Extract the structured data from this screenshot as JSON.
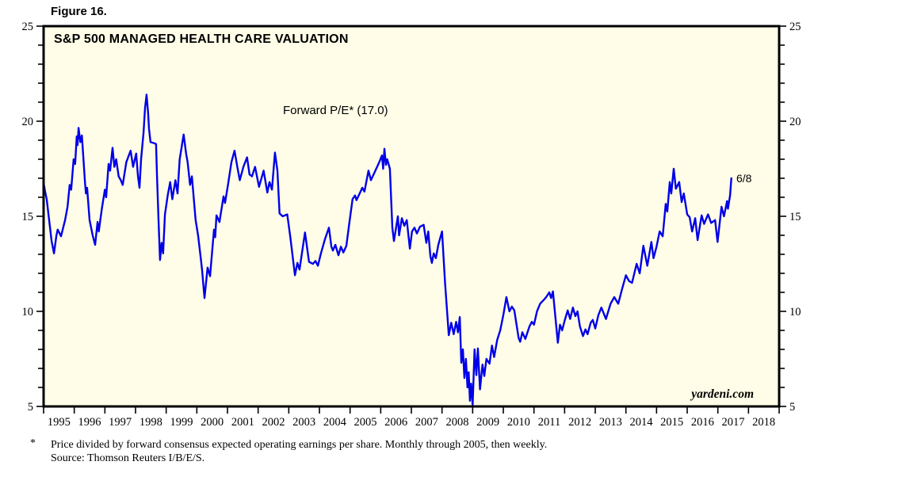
{
  "figure_label": "Figure 16.",
  "footnote": {
    "asterisk": "*",
    "text": "Price divided by forward consensus expected operating earnings per share. Monthly through 2005, then weekly.",
    "source": "Source: Thomson Reuters I/B/E/S."
  },
  "chart_data": {
    "type": "line",
    "title": "S&P 500 MANAGED HEALTH CARE VALUATION",
    "annotation": "Forward P/E* (17.0)",
    "endpoint_label": "6/8",
    "watermark": "yardeni.com",
    "xlabel": "",
    "ylabel": "",
    "grid": false,
    "legend_position": "none",
    "x_range": [
      1995,
      2019
    ],
    "y_range": [
      5,
      25
    ],
    "y_major_ticks": [
      5,
      10,
      15,
      20,
      25
    ],
    "y_minor_step": 1,
    "x_tick_labels": [
      "1995",
      "1996",
      "1997",
      "1998",
      "1999",
      "2000",
      "2001",
      "2002",
      "2003",
      "2004",
      "2005",
      "2006",
      "2007",
      "2008",
      "2009",
      "2010",
      "2011",
      "2012",
      "2013",
      "2014",
      "2015",
      "2016",
      "2017",
      "2018"
    ],
    "colors": {
      "line": "#0000e8",
      "plot_bg": "#fffde7",
      "axis": "#000000"
    },
    "series": [
      {
        "name": "Forward P/E",
        "points": [
          [
            1995.0,
            16.75
          ],
          [
            1995.05,
            16.3
          ],
          [
            1995.1,
            15.9
          ],
          [
            1995.18,
            14.8
          ],
          [
            1995.26,
            13.7
          ],
          [
            1995.34,
            13.05
          ],
          [
            1995.42,
            14.0
          ],
          [
            1995.46,
            14.3
          ],
          [
            1995.57,
            13.95
          ],
          [
            1995.7,
            14.8
          ],
          [
            1995.78,
            15.5
          ],
          [
            1995.85,
            16.65
          ],
          [
            1995.9,
            16.4
          ],
          [
            1995.98,
            18.0
          ],
          [
            1996.03,
            17.75
          ],
          [
            1996.08,
            19.2
          ],
          [
            1996.11,
            18.75
          ],
          [
            1996.14,
            19.65
          ],
          [
            1996.2,
            18.9
          ],
          [
            1996.25,
            19.25
          ],
          [
            1996.3,
            18.0
          ],
          [
            1996.35,
            16.8
          ],
          [
            1996.38,
            16.2
          ],
          [
            1996.42,
            16.5
          ],
          [
            1996.5,
            14.8
          ],
          [
            1996.6,
            14.0
          ],
          [
            1996.68,
            13.5
          ],
          [
            1996.76,
            14.7
          ],
          [
            1996.8,
            14.2
          ],
          [
            1996.9,
            15.4
          ],
          [
            1997.0,
            16.4
          ],
          [
            1997.04,
            16.0
          ],
          [
            1997.12,
            17.75
          ],
          [
            1997.17,
            17.4
          ],
          [
            1997.25,
            18.6
          ],
          [
            1997.31,
            17.6
          ],
          [
            1997.37,
            18.0
          ],
          [
            1997.45,
            17.1
          ],
          [
            1997.52,
            16.9
          ],
          [
            1997.58,
            16.65
          ],
          [
            1997.7,
            17.85
          ],
          [
            1997.84,
            18.45
          ],
          [
            1997.92,
            17.6
          ],
          [
            1998.02,
            18.3
          ],
          [
            1998.08,
            17.1
          ],
          [
            1998.13,
            16.5
          ],
          [
            1998.18,
            18.0
          ],
          [
            1998.26,
            19.4
          ],
          [
            1998.31,
            20.7
          ],
          [
            1998.36,
            21.4
          ],
          [
            1998.41,
            20.4
          ],
          [
            1998.44,
            19.6
          ],
          [
            1998.49,
            18.9
          ],
          [
            1998.6,
            18.85
          ],
          [
            1998.67,
            18.8
          ],
          [
            1998.7,
            17.1
          ],
          [
            1998.75,
            14.8
          ],
          [
            1998.8,
            12.7
          ],
          [
            1998.85,
            13.6
          ],
          [
            1998.9,
            13.05
          ],
          [
            1998.96,
            15.1
          ],
          [
            1999.05,
            16.1
          ],
          [
            1999.13,
            16.8
          ],
          [
            1999.2,
            15.9
          ],
          [
            1999.3,
            16.9
          ],
          [
            1999.37,
            16.2
          ],
          [
            1999.44,
            18.0
          ],
          [
            1999.57,
            19.3
          ],
          [
            1999.65,
            18.3
          ],
          [
            1999.7,
            17.85
          ],
          [
            1999.78,
            16.65
          ],
          [
            1999.84,
            17.1
          ],
          [
            1999.96,
            14.8
          ],
          [
            2000.04,
            14.0
          ],
          [
            2000.12,
            12.9
          ],
          [
            2000.17,
            12.2
          ],
          [
            2000.25,
            10.7
          ],
          [
            2000.35,
            12.3
          ],
          [
            2000.43,
            11.85
          ],
          [
            2000.56,
            14.3
          ],
          [
            2000.6,
            13.9
          ],
          [
            2000.64,
            15.05
          ],
          [
            2000.74,
            14.7
          ],
          [
            2000.87,
            16.05
          ],
          [
            2000.92,
            15.7
          ],
          [
            2001.02,
            16.7
          ],
          [
            2001.13,
            17.85
          ],
          [
            2001.23,
            18.45
          ],
          [
            2001.32,
            17.6
          ],
          [
            2001.4,
            16.9
          ],
          [
            2001.52,
            17.6
          ],
          [
            2001.64,
            18.1
          ],
          [
            2001.72,
            17.2
          ],
          [
            2001.8,
            17.1
          ],
          [
            2001.9,
            17.6
          ],
          [
            2002.03,
            16.55
          ],
          [
            2002.18,
            17.4
          ],
          [
            2002.3,
            16.25
          ],
          [
            2002.37,
            16.8
          ],
          [
            2002.45,
            16.4
          ],
          [
            2002.55,
            18.35
          ],
          [
            2002.63,
            17.4
          ],
          [
            2002.7,
            15.15
          ],
          [
            2002.8,
            15.0
          ],
          [
            2002.95,
            15.1
          ],
          [
            2003.05,
            13.9
          ],
          [
            2003.2,
            11.9
          ],
          [
            2003.28,
            12.55
          ],
          [
            2003.35,
            12.2
          ],
          [
            2003.53,
            14.15
          ],
          [
            2003.66,
            12.6
          ],
          [
            2003.79,
            12.5
          ],
          [
            2003.87,
            12.65
          ],
          [
            2003.95,
            12.4
          ],
          [
            2004.05,
            13.05
          ],
          [
            2004.18,
            13.8
          ],
          [
            2004.31,
            14.4
          ],
          [
            2004.39,
            13.4
          ],
          [
            2004.44,
            13.2
          ],
          [
            2004.52,
            13.5
          ],
          [
            2004.62,
            12.95
          ],
          [
            2004.7,
            13.4
          ],
          [
            2004.78,
            13.1
          ],
          [
            2004.88,
            13.45
          ],
          [
            2004.98,
            14.7
          ],
          [
            2005.08,
            15.9
          ],
          [
            2005.16,
            16.1
          ],
          [
            2005.21,
            15.85
          ],
          [
            2005.4,
            16.5
          ],
          [
            2005.47,
            16.3
          ],
          [
            2005.6,
            17.4
          ],
          [
            2005.68,
            16.9
          ],
          [
            2005.81,
            17.35
          ],
          [
            2005.94,
            17.8
          ],
          [
            2006.04,
            18.2
          ],
          [
            2006.08,
            17.5
          ],
          [
            2006.12,
            18.55
          ],
          [
            2006.17,
            17.7
          ],
          [
            2006.21,
            18.0
          ],
          [
            2006.3,
            17.5
          ],
          [
            2006.38,
            14.4
          ],
          [
            2006.43,
            13.7
          ],
          [
            2006.56,
            15.0
          ],
          [
            2006.6,
            14.0
          ],
          [
            2006.69,
            14.9
          ],
          [
            2006.77,
            14.5
          ],
          [
            2006.85,
            14.8
          ],
          [
            2006.95,
            13.3
          ],
          [
            2007.02,
            14.2
          ],
          [
            2007.1,
            14.4
          ],
          [
            2007.18,
            14.1
          ],
          [
            2007.28,
            14.45
          ],
          [
            2007.4,
            14.55
          ],
          [
            2007.49,
            13.6
          ],
          [
            2007.55,
            14.2
          ],
          [
            2007.62,
            12.9
          ],
          [
            2007.67,
            12.55
          ],
          [
            2007.73,
            13.05
          ],
          [
            2007.8,
            12.8
          ],
          [
            2007.88,
            13.5
          ],
          [
            2008.0,
            14.2
          ],
          [
            2008.1,
            11.5
          ],
          [
            2008.22,
            8.75
          ],
          [
            2008.3,
            9.4
          ],
          [
            2008.38,
            8.8
          ],
          [
            2008.46,
            9.45
          ],
          [
            2008.52,
            8.9
          ],
          [
            2008.58,
            9.7
          ],
          [
            2008.63,
            7.3
          ],
          [
            2008.68,
            8.0
          ],
          [
            2008.73,
            6.5
          ],
          [
            2008.78,
            7.5
          ],
          [
            2008.83,
            6.0
          ],
          [
            2008.87,
            6.8
          ],
          [
            2008.91,
            5.3
          ],
          [
            2008.95,
            6.2
          ],
          [
            2009.0,
            5.05
          ],
          [
            2009.06,
            8.0
          ],
          [
            2009.12,
            6.65
          ],
          [
            2009.17,
            8.05
          ],
          [
            2009.24,
            5.9
          ],
          [
            2009.32,
            7.2
          ],
          [
            2009.38,
            6.6
          ],
          [
            2009.45,
            7.5
          ],
          [
            2009.55,
            7.25
          ],
          [
            2009.63,
            8.2
          ],
          [
            2009.7,
            7.6
          ],
          [
            2009.8,
            8.5
          ],
          [
            2009.9,
            9.0
          ],
          [
            2010.0,
            9.8
          ],
          [
            2010.1,
            10.75
          ],
          [
            2010.2,
            10.0
          ],
          [
            2010.28,
            10.25
          ],
          [
            2010.36,
            10.05
          ],
          [
            2010.5,
            8.6
          ],
          [
            2010.55,
            8.4
          ],
          [
            2010.62,
            8.9
          ],
          [
            2010.72,
            8.55
          ],
          [
            2010.85,
            9.2
          ],
          [
            2010.93,
            9.45
          ],
          [
            2011.0,
            9.3
          ],
          [
            2011.1,
            10.0
          ],
          [
            2011.2,
            10.4
          ],
          [
            2011.32,
            10.6
          ],
          [
            2011.4,
            10.75
          ],
          [
            2011.5,
            11.0
          ],
          [
            2011.56,
            10.7
          ],
          [
            2011.62,
            11.05
          ],
          [
            2011.7,
            9.7
          ],
          [
            2011.78,
            8.35
          ],
          [
            2011.85,
            9.3
          ],
          [
            2011.92,
            9.0
          ],
          [
            2012.0,
            9.5
          ],
          [
            2012.1,
            10.05
          ],
          [
            2012.18,
            9.6
          ],
          [
            2012.27,
            10.2
          ],
          [
            2012.35,
            9.75
          ],
          [
            2012.42,
            10.0
          ],
          [
            2012.5,
            9.2
          ],
          [
            2012.6,
            8.7
          ],
          [
            2012.68,
            9.05
          ],
          [
            2012.75,
            8.8
          ],
          [
            2012.85,
            9.4
          ],
          [
            2012.92,
            9.55
          ],
          [
            2013.0,
            9.1
          ],
          [
            2013.1,
            9.8
          ],
          [
            2013.2,
            10.2
          ],
          [
            2013.35,
            9.6
          ],
          [
            2013.5,
            10.4
          ],
          [
            2013.62,
            10.75
          ],
          [
            2013.75,
            10.4
          ],
          [
            2013.88,
            11.2
          ],
          [
            2014.0,
            11.9
          ],
          [
            2014.1,
            11.6
          ],
          [
            2014.2,
            11.5
          ],
          [
            2014.35,
            12.5
          ],
          [
            2014.45,
            12.0
          ],
          [
            2014.57,
            13.45
          ],
          [
            2014.7,
            12.4
          ],
          [
            2014.83,
            13.65
          ],
          [
            2014.9,
            12.8
          ],
          [
            2015.0,
            13.4
          ],
          [
            2015.1,
            14.2
          ],
          [
            2015.2,
            13.95
          ],
          [
            2015.3,
            15.65
          ],
          [
            2015.35,
            15.25
          ],
          [
            2015.43,
            16.8
          ],
          [
            2015.48,
            16.2
          ],
          [
            2015.56,
            17.5
          ],
          [
            2015.63,
            16.45
          ],
          [
            2015.74,
            16.8
          ],
          [
            2015.82,
            15.75
          ],
          [
            2015.89,
            16.2
          ],
          [
            2016.0,
            15.1
          ],
          [
            2016.08,
            14.95
          ],
          [
            2016.16,
            14.2
          ],
          [
            2016.26,
            14.9
          ],
          [
            2016.34,
            13.75
          ],
          [
            2016.47,
            15.05
          ],
          [
            2016.55,
            14.6
          ],
          [
            2016.68,
            15.1
          ],
          [
            2016.78,
            14.65
          ],
          [
            2016.91,
            14.8
          ],
          [
            2016.99,
            13.65
          ],
          [
            2017.12,
            15.5
          ],
          [
            2017.2,
            15.0
          ],
          [
            2017.3,
            15.8
          ],
          [
            2017.33,
            15.4
          ],
          [
            2017.4,
            16.1
          ],
          [
            2017.44,
            17.0
          ]
        ]
      }
    ]
  }
}
